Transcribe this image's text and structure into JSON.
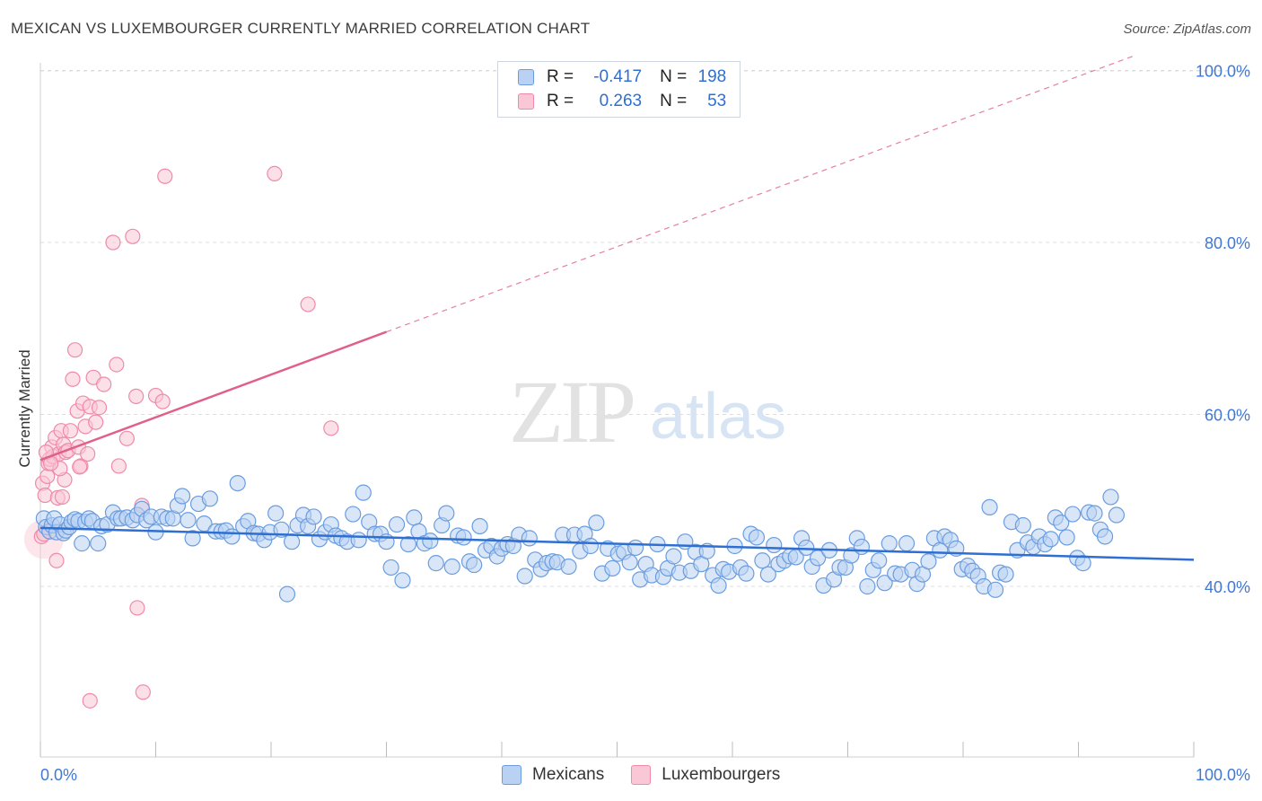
{
  "title": "MEXICAN VS LUXEMBOURGER CURRENTLY MARRIED CORRELATION CHART",
  "source": "Source: ZipAtlas.com",
  "watermark": {
    "zip": "ZIP",
    "atlas": "atlas"
  },
  "legend": {
    "rows": [
      {
        "r_label": "R =",
        "r_value": "-0.417",
        "n_label": "N =",
        "n_value": "198",
        "color": "#6a9de0",
        "fill": "#b9d1f3"
      },
      {
        "r_label": "R =",
        "r_value": "0.263",
        "n_label": "N =",
        "n_value": "53",
        "color": "#f08aa8",
        "fill": "#f9c7d5"
      }
    ]
  },
  "bottom_legend": [
    {
      "label": "Mexicans",
      "color": "#6a9de0",
      "fill": "#b9d1f3"
    },
    {
      "label": "Luxembourgers",
      "color": "#f08aa8",
      "fill": "#f9c7d5"
    }
  ],
  "chart_data": {
    "type": "scatter",
    "title": "MEXICAN VS LUXEMBOURGER CURRENTLY MARRIED CORRELATION CHART",
    "xlabel": "",
    "ylabel": "Currently Married",
    "xlim": [
      0,
      100
    ],
    "ylim": [
      18.5,
      100
    ],
    "x_tick_labels": [
      "0.0%",
      "100.0%"
    ],
    "y_ticks": [
      40,
      60,
      80,
      100
    ],
    "y_tick_labels": [
      "40.0%",
      "60.0%",
      "80.0%",
      "100.0%"
    ],
    "grid": true,
    "series": [
      {
        "name": "Mexicans",
        "color": "#2f6fd1",
        "fill": "#b9d1f3",
        "stroke": "#6a9de0",
        "trend": {
          "x": [
            0,
            100
          ],
          "y": [
            46.8,
            43.1
          ],
          "style": "solid"
        },
        "points": [
          [
            0.3,
            47.9
          ],
          [
            0.5,
            46.9
          ],
          [
            0.8,
            46.4
          ],
          [
            1,
            47.1
          ],
          [
            1.2,
            47.9
          ],
          [
            1.4,
            46.3
          ],
          [
            1.7,
            47.2
          ],
          [
            2.0,
            46.2
          ],
          [
            2.2,
            46.5
          ],
          [
            2.5,
            46.9
          ],
          [
            2.7,
            47.5
          ],
          [
            3,
            47.8
          ],
          [
            3.3,
            47.6
          ],
          [
            3.6,
            45.0
          ],
          [
            3.9,
            47.5
          ],
          [
            4.2,
            47.9
          ],
          [
            4.5,
            47.6
          ],
          [
            5,
            45.0
          ],
          [
            5.3,
            47.0
          ],
          [
            5.8,
            47.2
          ],
          [
            6.3,
            48.6
          ],
          [
            6.7,
            47.9
          ],
          [
            7,
            47.9
          ],
          [
            7.5,
            48.0
          ],
          [
            8,
            47.7
          ],
          [
            8.4,
            48.3
          ],
          [
            8.8,
            49.0
          ],
          [
            9.2,
            47.7
          ],
          [
            9.6,
            48.1
          ],
          [
            10,
            46.3
          ],
          [
            10.5,
            48.1
          ],
          [
            11,
            47.9
          ],
          [
            11.5,
            47.9
          ],
          [
            11.9,
            49.4
          ],
          [
            12.3,
            50.5
          ],
          [
            12.8,
            47.7
          ],
          [
            13.2,
            45.6
          ],
          [
            13.7,
            49.6
          ],
          [
            14.2,
            47.3
          ],
          [
            14.7,
            50.2
          ],
          [
            15.2,
            46.4
          ],
          [
            15.7,
            46.4
          ],
          [
            16.1,
            46.5
          ],
          [
            16.6,
            45.8
          ],
          [
            17.1,
            52.0
          ],
          [
            17.6,
            47.0
          ],
          [
            18,
            47.6
          ],
          [
            18.5,
            46.2
          ],
          [
            18.9,
            46.1
          ],
          [
            19.4,
            45.4
          ],
          [
            19.9,
            46.3
          ],
          [
            20.4,
            48.5
          ],
          [
            20.9,
            46.6
          ],
          [
            21.4,
            39.1
          ],
          [
            21.8,
            45.2
          ],
          [
            22.3,
            47.1
          ],
          [
            22.8,
            48.3
          ],
          [
            23.2,
            47.0
          ],
          [
            23.7,
            48.1
          ],
          [
            24.2,
            45.5
          ],
          [
            24.7,
            46.3
          ],
          [
            25.2,
            47.2
          ],
          [
            25.6,
            45.9
          ],
          [
            26.1,
            45.6
          ],
          [
            26.6,
            45.2
          ],
          [
            27.1,
            48.4
          ],
          [
            27.6,
            45.4
          ],
          [
            28.0,
            50.9
          ],
          [
            28.5,
            47.5
          ],
          [
            29,
            46.1
          ],
          [
            29.5,
            46.1
          ],
          [
            30.0,
            45.2
          ],
          [
            30.4,
            42.2
          ],
          [
            30.9,
            47.2
          ],
          [
            31.4,
            40.7
          ],
          [
            31.9,
            44.9
          ],
          [
            32.4,
            48.0
          ],
          [
            32.8,
            46.4
          ],
          [
            33.3,
            45.0
          ],
          [
            33.8,
            45.3
          ],
          [
            34.3,
            42.7
          ],
          [
            34.8,
            47.1
          ],
          [
            35.2,
            48.5
          ],
          [
            35.7,
            42.3
          ],
          [
            36.2,
            45.9
          ],
          [
            36.7,
            45.7
          ],
          [
            37.2,
            42.9
          ],
          [
            37.6,
            42.5
          ],
          [
            38.1,
            47.0
          ],
          [
            38.6,
            44.2
          ],
          [
            39.1,
            44.7
          ],
          [
            39.6,
            43.5
          ],
          [
            40.0,
            44.4
          ],
          [
            40.5,
            44.9
          ],
          [
            41,
            44.7
          ],
          [
            41.5,
            46.0
          ],
          [
            42.0,
            41.2
          ],
          [
            42.4,
            45.6
          ],
          [
            42.9,
            43.1
          ],
          [
            43.4,
            42.0
          ],
          [
            43.9,
            42.7
          ],
          [
            44.4,
            42.9
          ],
          [
            44.8,
            42.8
          ],
          [
            45.3,
            46.0
          ],
          [
            45.8,
            42.3
          ],
          [
            46.3,
            46.0
          ],
          [
            46.8,
            44.1
          ],
          [
            47.2,
            46.1
          ],
          [
            47.7,
            44.7
          ],
          [
            48.2,
            47.4
          ],
          [
            48.7,
            41.5
          ],
          [
            49.2,
            44.4
          ],
          [
            49.6,
            42.1
          ],
          [
            50.1,
            43.8
          ],
          [
            50.6,
            44.0
          ],
          [
            51.1,
            42.8
          ],
          [
            51.6,
            44.5
          ],
          [
            52,
            40.8
          ],
          [
            52.5,
            42.6
          ],
          [
            53,
            41.3
          ],
          [
            53.5,
            44.9
          ],
          [
            54,
            41.1
          ],
          [
            54.4,
            42.1
          ],
          [
            54.9,
            43.5
          ],
          [
            55.4,
            41.6
          ],
          [
            55.9,
            45.2
          ],
          [
            56.4,
            41.8
          ],
          [
            56.8,
            44.0
          ],
          [
            57.3,
            42.6
          ],
          [
            57.8,
            44.1
          ],
          [
            58.3,
            41.3
          ],
          [
            58.8,
            40.1
          ],
          [
            59.2,
            42.0
          ],
          [
            59.7,
            41.7
          ],
          [
            60.2,
            44.7
          ],
          [
            60.7,
            42.2
          ],
          [
            61.2,
            41.5
          ],
          [
            61.6,
            46.1
          ],
          [
            62.1,
            45.7
          ],
          [
            62.6,
            43.0
          ],
          [
            63.1,
            41.4
          ],
          [
            63.6,
            44.8
          ],
          [
            64.0,
            42.6
          ],
          [
            64.5,
            43.0
          ],
          [
            65,
            43.5
          ],
          [
            65.5,
            43.4
          ],
          [
            66.0,
            45.6
          ],
          [
            66.4,
            44.5
          ],
          [
            66.9,
            42.3
          ],
          [
            67.4,
            43.3
          ],
          [
            67.9,
            40.1
          ],
          [
            68.4,
            44.2
          ],
          [
            68.8,
            40.8
          ],
          [
            69.3,
            42.2
          ],
          [
            69.8,
            42.2
          ],
          [
            70.3,
            43.6
          ],
          [
            70.8,
            45.6
          ],
          [
            71.2,
            44.6
          ],
          [
            71.7,
            40.0
          ],
          [
            72.2,
            41.9
          ],
          [
            72.7,
            43.0
          ],
          [
            73.2,
            40.4
          ],
          [
            73.6,
            45.0
          ],
          [
            74.1,
            41.5
          ],
          [
            74.6,
            41.4
          ],
          [
            75.1,
            45.0
          ],
          [
            75.6,
            41.9
          ],
          [
            76.0,
            40.3
          ],
          [
            76.5,
            41.4
          ],
          [
            77,
            42.9
          ],
          [
            77.5,
            45.6
          ],
          [
            78.0,
            44.2
          ],
          [
            78.4,
            45.8
          ],
          [
            78.9,
            45.4
          ],
          [
            79.4,
            44.4
          ],
          [
            79.9,
            42.0
          ],
          [
            80.4,
            42.4
          ],
          [
            80.8,
            41.8
          ],
          [
            81.3,
            41.2
          ],
          [
            81.8,
            40.0
          ],
          [
            82.3,
            49.2
          ],
          [
            82.8,
            39.6
          ],
          [
            83.2,
            41.6
          ],
          [
            83.7,
            41.4
          ],
          [
            84.2,
            47.5
          ],
          [
            84.7,
            44.2
          ],
          [
            85.2,
            47.1
          ],
          [
            85.6,
            45.1
          ],
          [
            86.1,
            44.6
          ],
          [
            86.6,
            45.8
          ],
          [
            87.1,
            44.9
          ],
          [
            87.6,
            45.5
          ],
          [
            88.0,
            48.0
          ],
          [
            88.5,
            47.4
          ],
          [
            89.0,
            45.7
          ],
          [
            89.5,
            48.4
          ],
          [
            89.9,
            43.3
          ],
          [
            90.4,
            42.7
          ],
          [
            90.9,
            48.6
          ],
          [
            91.4,
            48.5
          ],
          [
            91.9,
            46.6
          ],
          [
            92.3,
            45.8
          ],
          [
            92.8,
            50.4
          ],
          [
            93.3,
            48.3
          ]
        ]
      },
      {
        "name": "Luxembourgers",
        "color": "#e0608a",
        "fill": "#f9c7d5",
        "stroke": "#f08aa8",
        "trend": {
          "x": [
            0,
            30
          ],
          "y": [
            54.7,
            69.6
          ],
          "style": "solid",
          "dashed_to": [
            95,
            101.8
          ]
        },
        "points": [
          [
            0.2,
            52.0
          ],
          [
            0.4,
            50.6
          ],
          [
            0.6,
            52.8
          ],
          [
            0.7,
            54.3
          ],
          [
            0.8,
            54.8
          ],
          [
            1,
            56.2
          ],
          [
            1.1,
            55.1
          ],
          [
            1.3,
            57.3
          ],
          [
            1.5,
            50.3
          ],
          [
            1.6,
            55.4
          ],
          [
            1.8,
            58.1
          ],
          [
            2,
            56.5
          ],
          [
            2.2,
            55.6
          ],
          [
            2.4,
            55.8
          ],
          [
            2.6,
            58.1
          ],
          [
            2.8,
            64.1
          ],
          [
            3,
            67.5
          ],
          [
            3.2,
            60.4
          ],
          [
            3.3,
            56.2
          ],
          [
            3.5,
            54.0
          ],
          [
            3.7,
            61.3
          ],
          [
            3.9,
            58.6
          ],
          [
            4.1,
            55.4
          ],
          [
            4.3,
            60.9
          ],
          [
            4.6,
            64.3
          ],
          [
            4.8,
            59.1
          ],
          [
            5.1,
            60.8
          ],
          [
            5.5,
            63.5
          ],
          [
            6.3,
            80.0
          ],
          [
            6.6,
            65.8
          ],
          [
            6.8,
            54.0
          ],
          [
            7.5,
            57.2
          ],
          [
            8,
            80.7
          ],
          [
            8.3,
            62.1
          ],
          [
            8.8,
            49.4
          ],
          [
            10.0,
            62.2
          ],
          [
            10.6,
            61.5
          ],
          [
            10.8,
            87.7
          ],
          [
            20.3,
            88.0
          ],
          [
            23.2,
            72.8
          ],
          [
            25.2,
            58.4
          ],
          [
            8.4,
            37.5
          ],
          [
            8.9,
            27.7
          ],
          [
            4.3,
            26.7
          ],
          [
            1.4,
            43.0
          ],
          [
            0.1,
            45.8
          ],
          [
            0.3,
            46.1
          ],
          [
            2.1,
            52.4
          ],
          [
            1.7,
            53.7
          ],
          [
            3.4,
            53.9
          ],
          [
            0.5,
            55.6
          ],
          [
            0.9,
            54.3
          ],
          [
            1.9,
            50.4
          ]
        ]
      }
    ]
  }
}
